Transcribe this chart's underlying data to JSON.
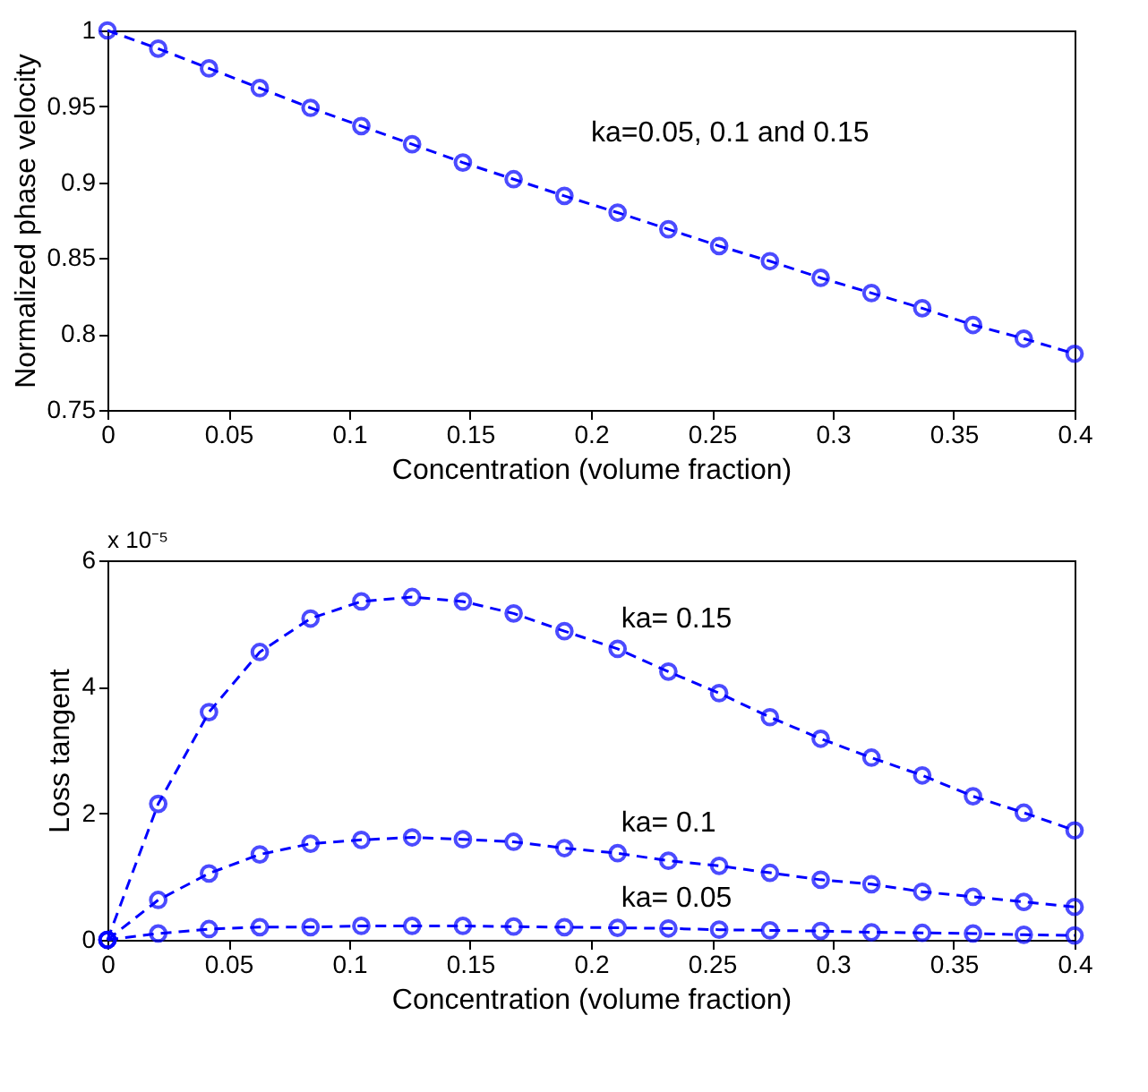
{
  "chart_data": [
    {
      "type": "line",
      "xlabel": "Concentration (volume fraction)",
      "ylabel": "Normalized phase velocity",
      "x": [
        0,
        0.021,
        0.042,
        0.063,
        0.084,
        0.105,
        0.126,
        0.147,
        0.168,
        0.189,
        0.211,
        0.232,
        0.253,
        0.274,
        0.295,
        0.316,
        0.337,
        0.358,
        0.379,
        0.4
      ],
      "series": [
        {
          "color": "#0000ff",
          "values": [
            1,
            0.988,
            0.975,
            0.962,
            0.949,
            0.937,
            0.925,
            0.913,
            0.902,
            0.891,
            0.88,
            0.869,
            0.858,
            0.848,
            0.837,
            0.827,
            0.817,
            0.806,
            0.797,
            0.787
          ]
        }
      ],
      "xlim": [
        0,
        0.4
      ],
      "xticks": [
        0,
        0.05,
        0.1,
        0.15,
        0.2,
        0.25,
        0.3,
        0.35,
        0.4
      ],
      "ylim": [
        0.75,
        1
      ],
      "yticks": [
        0.75,
        0.8,
        0.85,
        0.9,
        0.95,
        1
      ],
      "annotations": [
        "ka=0.05, 0.1 and  0.15"
      ],
      "marker": "circle",
      "line_style": "dashed",
      "grid": false
    },
    {
      "type": "line",
      "xlabel": "Concentration (volume fraction)",
      "ylabel": "Loss tangent",
      "x": [
        0,
        0.021,
        0.042,
        0.063,
        0.084,
        0.105,
        0.126,
        0.147,
        0.168,
        0.189,
        0.211,
        0.232,
        0.253,
        0.274,
        0.295,
        0.316,
        0.337,
        0.358,
        0.379,
        0.4
      ],
      "series": [
        {
          "name": "ka= 0.15",
          "color": "#0000ff",
          "values": [
            0,
            2.15,
            3.6,
            4.55,
            5.08,
            5.35,
            5.42,
            5.35,
            5.16,
            4.88,
            4.6,
            4.24,
            3.9,
            3.52,
            3.18,
            2.88,
            2.6,
            2.27,
            2.01,
            1.73
          ]
        },
        {
          "name": "ka= 0.1",
          "color": "#0000ff",
          "values": [
            0,
            0.63,
            1.05,
            1.35,
            1.52,
            1.58,
            1.62,
            1.59,
            1.55,
            1.45,
            1.37,
            1.25,
            1.17,
            1.06,
            0.95,
            0.88,
            0.76,
            0.68,
            0.6,
            0.52
          ]
        },
        {
          "name": "ka= 0.05",
          "color": "#0000ff",
          "values": [
            0,
            0.1,
            0.17,
            0.2,
            0.2,
            0.22,
            0.22,
            0.22,
            0.21,
            0.2,
            0.19,
            0.18,
            0.16,
            0.15,
            0.14,
            0.12,
            0.11,
            0.1,
            0.08,
            0.07
          ]
        }
      ],
      "xlim": [
        0,
        0.4
      ],
      "xticks": [
        0,
        0.05,
        0.1,
        0.15,
        0.2,
        0.25,
        0.3,
        0.35,
        0.4
      ],
      "ylim": [
        0,
        6
      ],
      "yticks": [
        0,
        2,
        4,
        6
      ],
      "annotations": [
        "x 10⁻⁵"
      ],
      "marker": "circle",
      "line_style": "dashed",
      "grid": false
    }
  ]
}
